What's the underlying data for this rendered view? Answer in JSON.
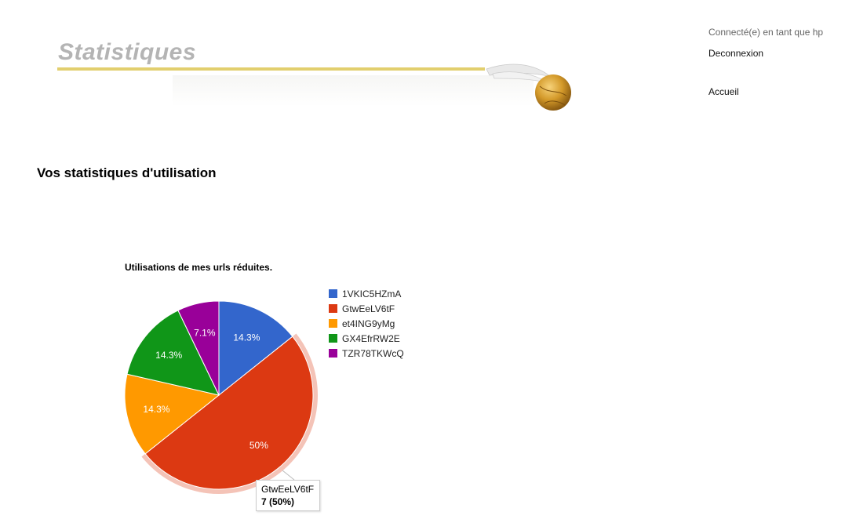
{
  "header": {
    "banner_title": "Statistiques",
    "user_status": "Connecté(e) en tant que hp",
    "logout_label": "Deconnexion",
    "home_label": "Accueil"
  },
  "main": {
    "heading": "Vos statistiques d'utilisation"
  },
  "chart_data": {
    "type": "pie",
    "title": "Utilisations de mes urls réduites.",
    "legend_position": "right",
    "slices": [
      {
        "label": "1VKIC5HZmA",
        "value": 2,
        "percent_label": "14.3%",
        "color": "#3366cc"
      },
      {
        "label": "GtwEeLV6tF",
        "value": 7,
        "percent_label": "50%",
        "color": "#dc3912"
      },
      {
        "label": "et4ING9yMg",
        "value": 2,
        "percent_label": "14.3%",
        "color": "#ff9900"
      },
      {
        "label": "GX4EfrRW2E",
        "value": 2,
        "percent_label": "14.3%",
        "color": "#109618"
      },
      {
        "label": "TZR78TKWcQ",
        "value": 1,
        "percent_label": "7.1%",
        "color": "#990099"
      }
    ],
    "highlighted_slice": 1,
    "tooltip": {
      "label": "GtwEeLV6tF",
      "value": "7 (50%)"
    }
  }
}
